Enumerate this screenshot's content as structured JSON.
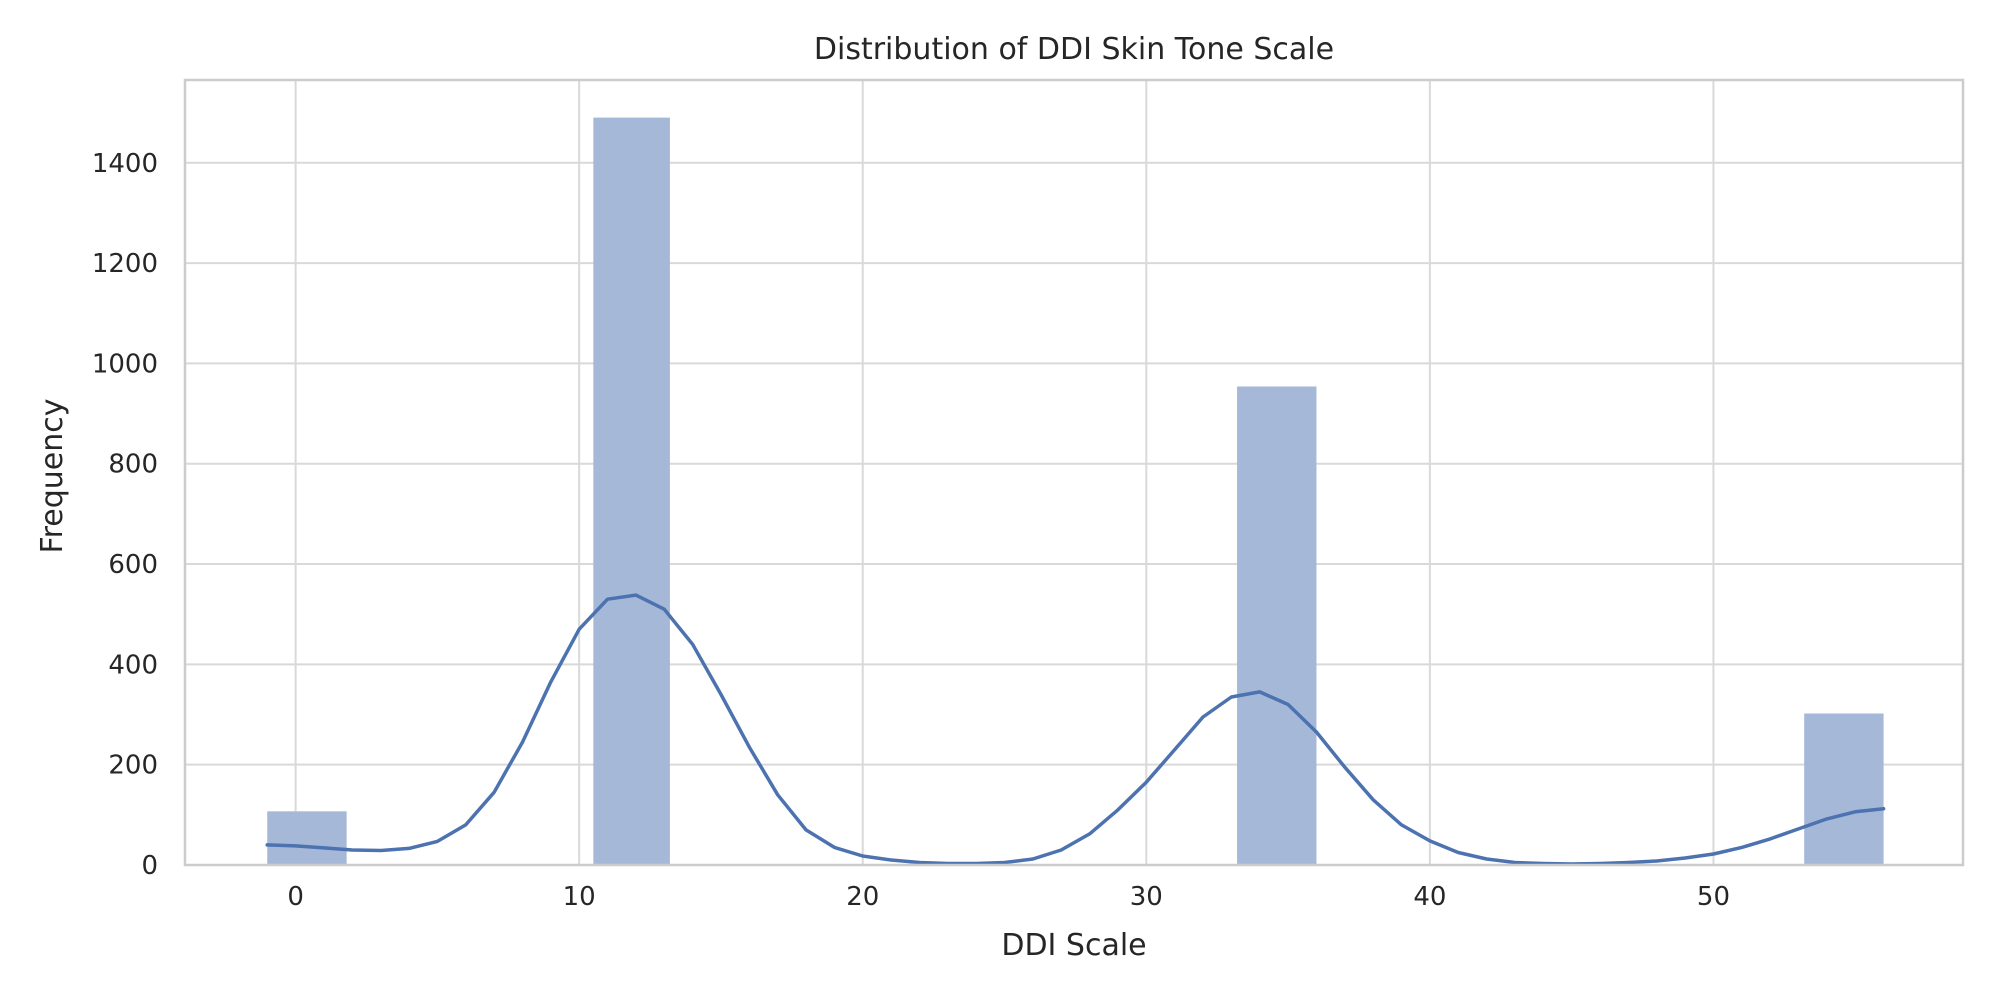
{
  "chart_data": {
    "type": "bar",
    "title": "Distribution of DDI Skin Tone Scale",
    "xlabel": "DDI Scale",
    "ylabel": "Frequency",
    "xlim": [
      -3.9,
      58.8
    ],
    "ylim": [
      0,
      1565
    ],
    "grid": true,
    "xticks": [
      0,
      10,
      20,
      30,
      40,
      50
    ],
    "xtick_labels": [
      "0",
      "10",
      "20",
      "30",
      "40",
      "50"
    ],
    "yticks": [
      0,
      200,
      400,
      600,
      800,
      1000,
      1200,
      1400
    ],
    "ytick_labels": [
      "0",
      "200",
      "400",
      "600",
      "800",
      "1000",
      "1200",
      "1400"
    ],
    "bins": [
      {
        "x0": -1.0,
        "x1": 1.8,
        "value": 107
      },
      {
        "x0": 10.5,
        "x1": 13.2,
        "value": 1490
      },
      {
        "x0": 33.2,
        "x1": 36.0,
        "value": 954
      },
      {
        "x0": 53.2,
        "x1": 56.0,
        "value": 302
      }
    ],
    "kde": {
      "name": "KDE",
      "x": [
        -1,
        0,
        1,
        2,
        3,
        4,
        5,
        6,
        7,
        8,
        9,
        10,
        11,
        12,
        13,
        14,
        15,
        16,
        17,
        18,
        19,
        20,
        21,
        22,
        23,
        24,
        25,
        26,
        27,
        28,
        29,
        30,
        31,
        32,
        33,
        34,
        35,
        36,
        37,
        38,
        39,
        40,
        41,
        42,
        43,
        44,
        45,
        46,
        47,
        48,
        49,
        50,
        51,
        52,
        53,
        54,
        55,
        56
      ],
      "y": [
        40,
        38,
        34,
        30,
        29,
        33,
        47,
        80,
        145,
        245,
        365,
        470,
        530,
        538,
        510,
        440,
        340,
        235,
        140,
        70,
        35,
        18,
        10,
        5,
        3,
        3,
        5,
        12,
        30,
        62,
        110,
        165,
        230,
        295,
        335,
        345,
        320,
        265,
        195,
        130,
        80,
        48,
        25,
        12,
        5,
        3,
        2,
        3,
        5,
        8,
        14,
        22,
        35,
        52,
        72,
        92,
        106,
        112
      ]
    },
    "colors": {
      "bar": "#a5b8d8",
      "line": "#4c72b0",
      "grid": "#d9d9d9",
      "frame": "#cccccc",
      "text": "#262626"
    }
  }
}
